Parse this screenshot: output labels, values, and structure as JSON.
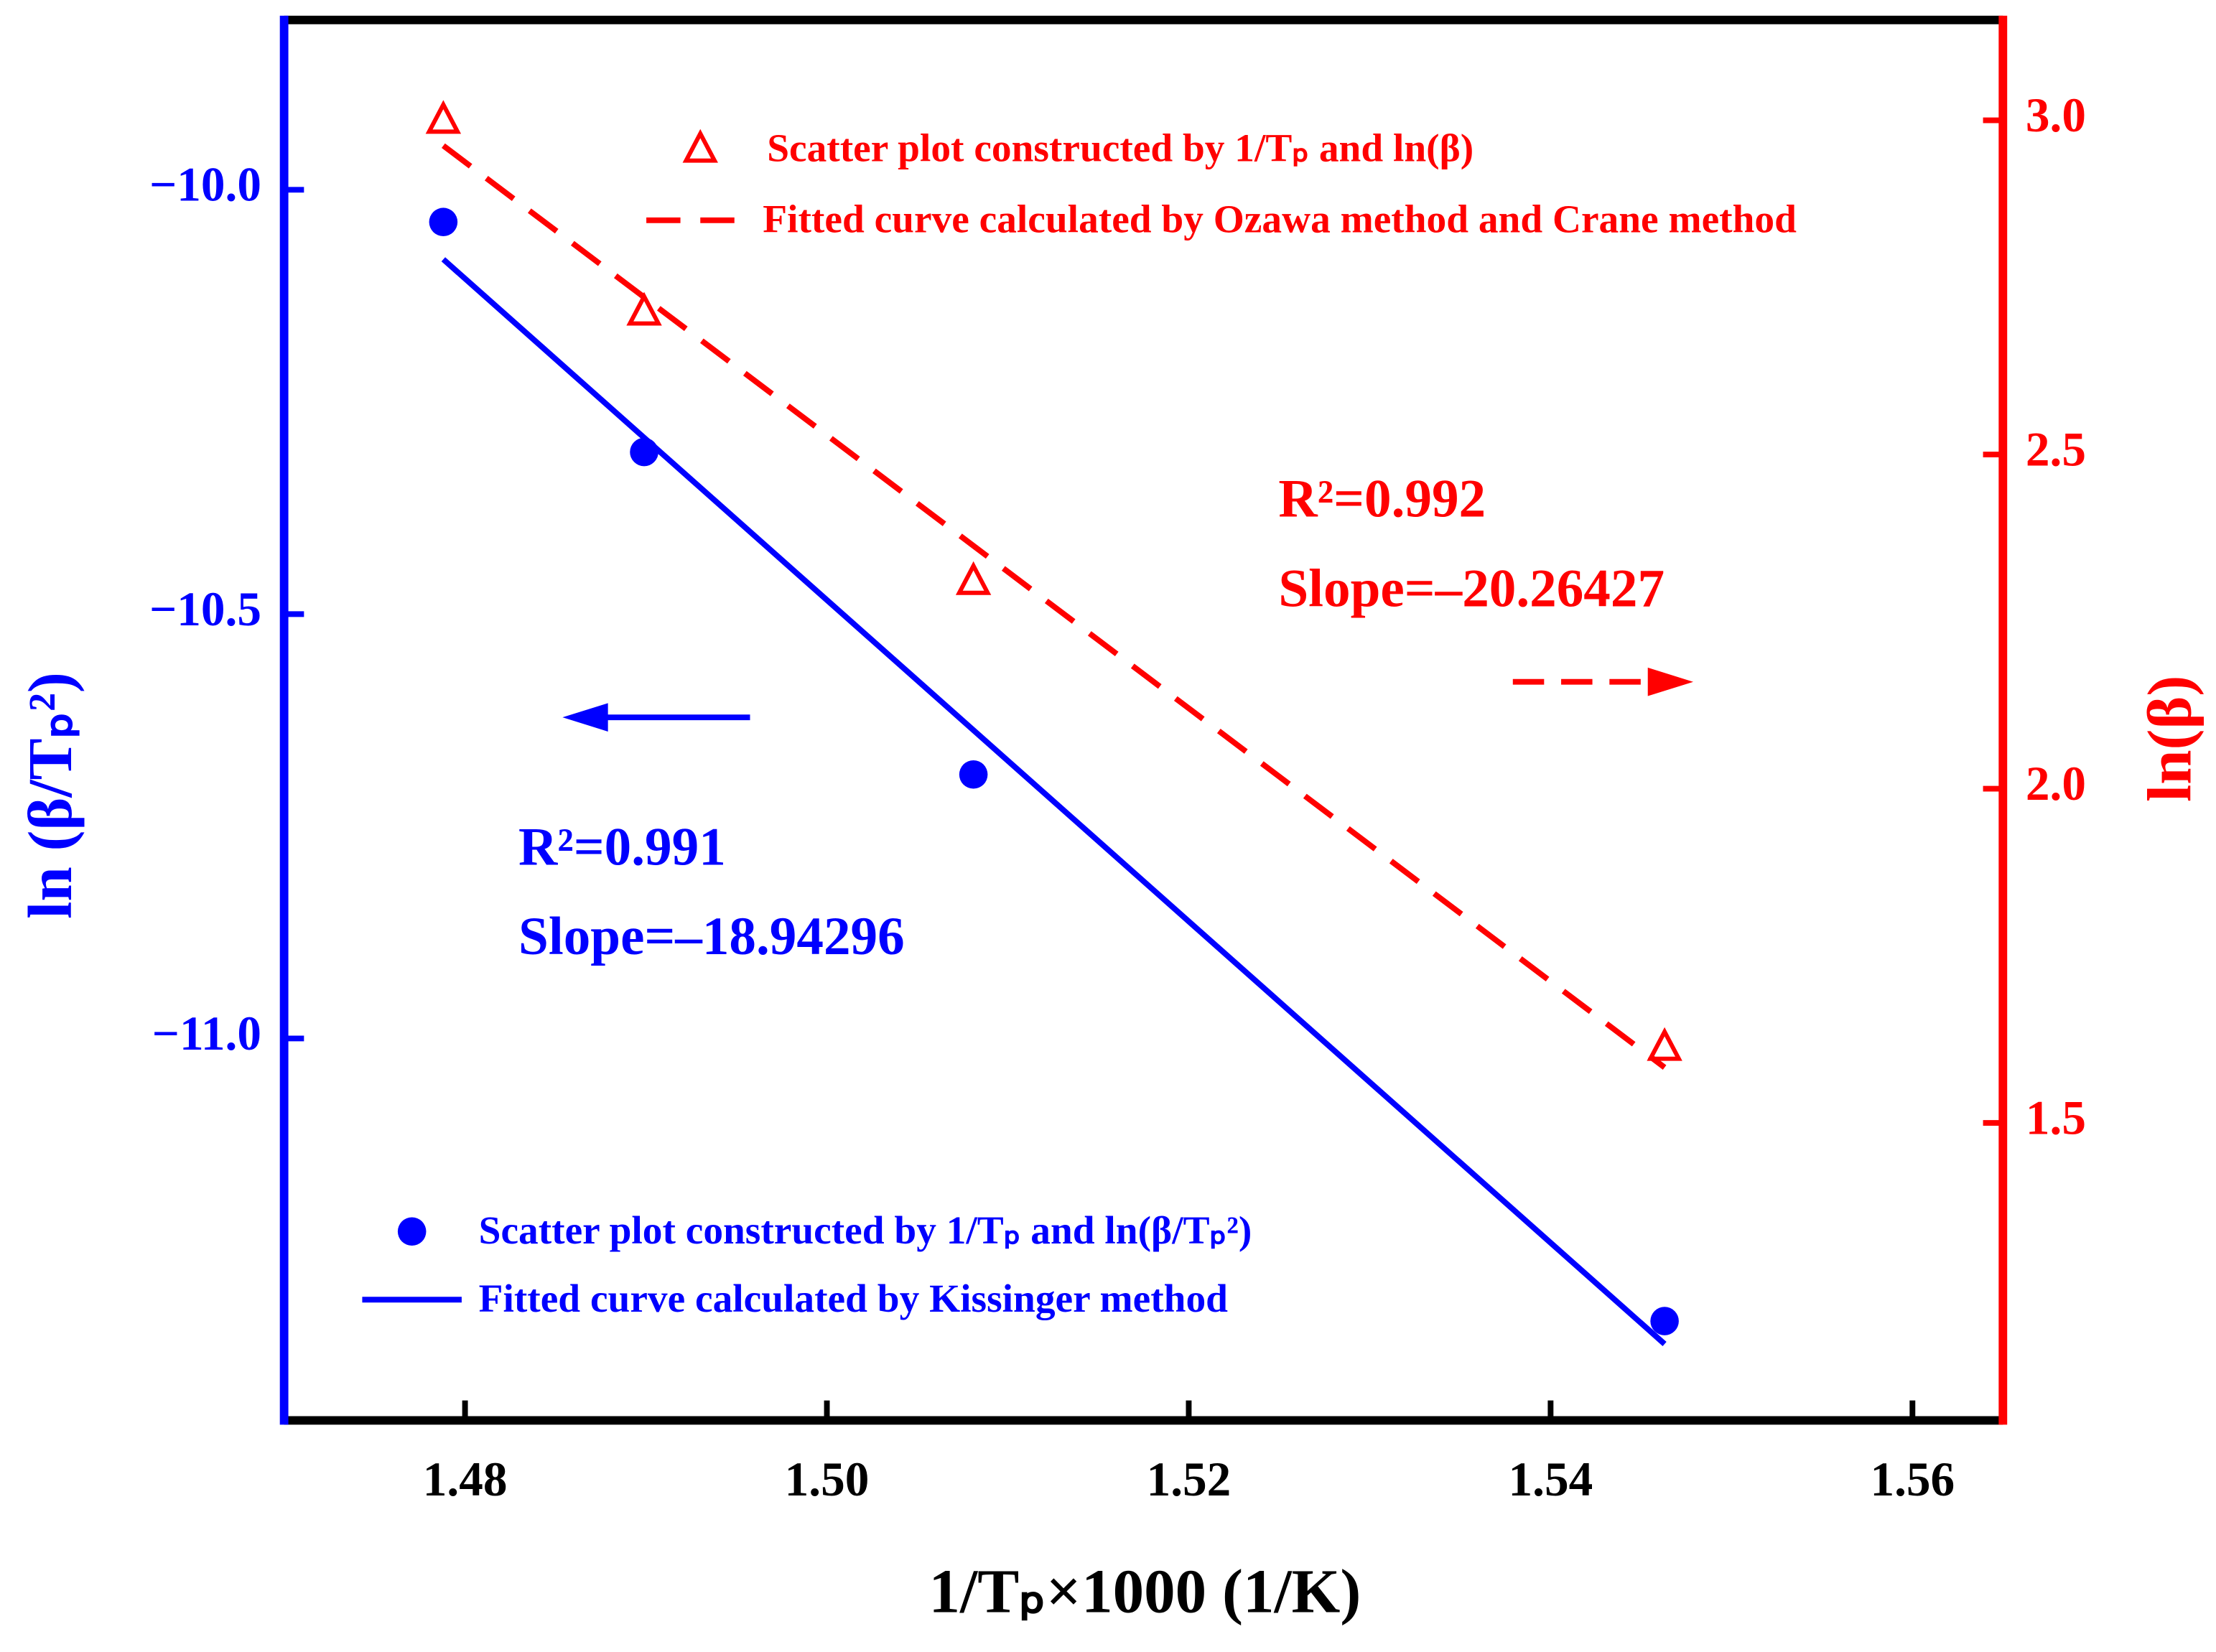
{
  "chart_data": {
    "type": "scatter",
    "xlabel": "1/Tₚ×1000 (1/K)",
    "ylabel": "ln (β/Tₚ²)",
    "y2label": "ln(β)",
    "xlim": [
      1.47,
      1.565
    ],
    "xticks": [
      1.48,
      {
        "value": 1.5,
        "label": "1.50"
      },
      1.52,
      1.54,
      1.56
    ],
    "ylim": [
      -11.45,
      -9.8
    ],
    "yticks": [
      {
        "value": -11,
        "label": "−11.0"
      },
      {
        "value": -10.5,
        "label": "−10.5"
      },
      {
        "value": -10,
        "label": "−10.0"
      }
    ],
    "y2lim": [
      1.055,
      3.15
    ],
    "y2ticks": [
      1.5,
      {
        "value": 2,
        "label": "2.0"
      },
      2.5,
      {
        "value": 3,
        "label": "3.0"
      }
    ],
    "series": [
      {
        "name": "Scatter plot constructed by 1/Tₚ and ln(β/Tₚ²)",
        "color": "#0000ff",
        "kind": "scatter",
        "marker": "circle",
        "axis": "y",
        "x": [
          1.4788,
          1.4899,
          1.5081,
          1.5463
        ],
        "values": [
          -10.038,
          -10.309,
          -10.689,
          -11.333
        ]
      },
      {
        "name": "Fitted curve calculated by Kissinger method",
        "color": "#0000ff",
        "kind": "line",
        "dash": false,
        "axis": "y",
        "x": [
          1.4788,
          1.5463
        ],
        "values": [
          -10.082,
          -11.36
        ]
      },
      {
        "name": "Scatter plot constructed by 1/Tₚ and ln(β)",
        "color": "#ff0000",
        "kind": "scatter",
        "marker": "triangle",
        "axis": "y2",
        "x": [
          1.4788,
          1.4899,
          1.5081,
          1.5463
        ],
        "values": [
          3.0,
          2.713,
          2.31,
          1.613
        ]
      },
      {
        "name": "Fitted curve calculated by Ozawa method and Crane method",
        "color": "#ff0000",
        "kind": "line",
        "dash": true,
        "axis": "y2",
        "x": [
          1.4788,
          1.5463
        ],
        "values": [
          2.962,
          1.583
        ]
      }
    ],
    "annotations": [
      {
        "text": "R²=0.992",
        "color": "#ff0000"
      },
      {
        "text": "Slope=–20.26427",
        "color": "#ff0000"
      },
      {
        "text": "R²=0.991",
        "color": "#0000ff"
      },
      {
        "text": "Slope=–18.94296",
        "color": "#0000ff"
      }
    ]
  }
}
